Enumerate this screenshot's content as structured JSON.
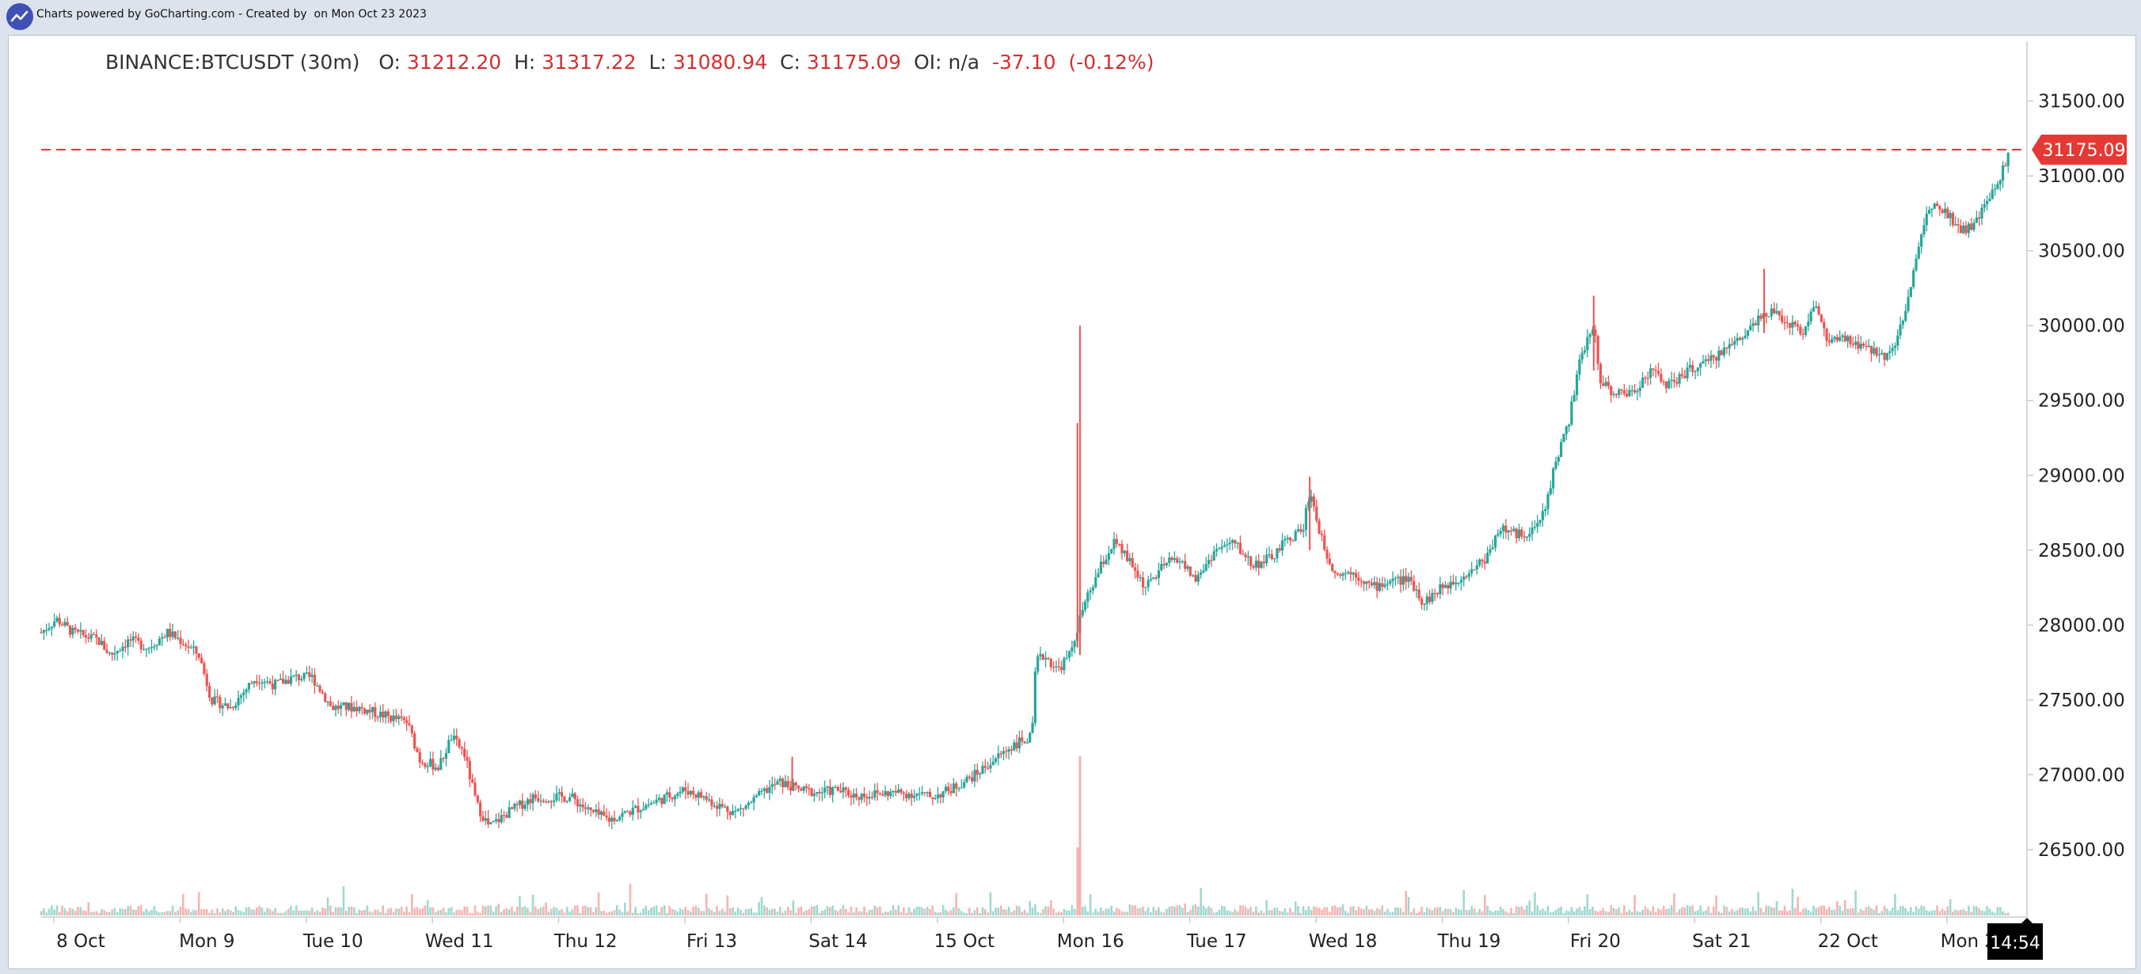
{
  "header": {
    "text": "Charts powered by GoCharting.com - Created by  on Mon Oct 23 2023"
  },
  "legend": {
    "symbol": "BINANCE:BTCUSDT (30m)",
    "o_label": "O:",
    "o": "31212.20",
    "h_label": "H:",
    "h": "31317.22",
    "l_label": "L:",
    "l": "31080.94",
    "c_label": "C:",
    "c": "31175.09",
    "oi_label": "OI:",
    "oi": "n/a",
    "change": "-37.10",
    "change_pct": "(-0.12%)"
  },
  "colors": {
    "up": "#26a69a",
    "down": "#ef5350",
    "last_price": "#e53935",
    "background": "#ffffff",
    "frame": "#dde3ec"
  },
  "time_badge": "14:54",
  "chart_data": {
    "type": "candlestick",
    "interval": "30m",
    "symbol": "BINANCE:BTCUSDT",
    "ylim": [
      26050,
      31900
    ],
    "grid": false,
    "last_price": 31175.09,
    "yticks": [
      "31500.00",
      "31000.00",
      "30500.00",
      "30000.00",
      "29500.00",
      "29000.00",
      "28500.00",
      "28000.00",
      "27500.00",
      "27000.00",
      "26500.00"
    ],
    "ytick_values": [
      31500,
      31000,
      30500,
      30000,
      29500,
      29000,
      28500,
      28000,
      27500,
      27000,
      26500
    ],
    "xticks": [
      "8 Oct",
      "Mon 9",
      "Tue 10",
      "Wed 11",
      "Thu 12",
      "Fri 13",
      "Sat 14",
      "15 Oct",
      "Mon 16",
      "Tue 17",
      "Wed 18",
      "Thu 19",
      "Fri 20",
      "Sat 21",
      "22 Oct",
      "Mon 23"
    ],
    "xtick_positions_days": [
      0.1,
      1.1,
      2.1,
      3.1,
      4.1,
      5.1,
      6.1,
      7.1,
      8.1,
      9.1,
      10.1,
      11.1,
      12.1,
      13.1,
      14.1,
      15.1
    ],
    "x_range_days": [
      0,
      15.72
    ],
    "close_path": [
      [
        0.0,
        27950
      ],
      [
        0.12,
        28040
      ],
      [
        0.25,
        27950
      ],
      [
        0.45,
        27900
      ],
      [
        0.55,
        27800
      ],
      [
        0.7,
        27900
      ],
      [
        0.85,
        27850
      ],
      [
        1.0,
        27950
      ],
      [
        1.1,
        27900
      ],
      [
        1.25,
        27800
      ],
      [
        1.35,
        27500
      ],
      [
        1.5,
        27450
      ],
      [
        1.6,
        27550
      ],
      [
        1.7,
        27650
      ],
      [
        1.85,
        27600
      ],
      [
        2.0,
        27650
      ],
      [
        2.15,
        27650
      ],
      [
        2.3,
        27450
      ],
      [
        2.5,
        27450
      ],
      [
        2.7,
        27400
      ],
      [
        2.9,
        27350
      ],
      [
        3.0,
        27100
      ],
      [
        3.15,
        27050
      ],
      [
        3.25,
        27250
      ],
      [
        3.35,
        27150
      ],
      [
        3.45,
        26800
      ],
      [
        3.55,
        26650
      ],
      [
        3.7,
        26750
      ],
      [
        3.9,
        26850
      ],
      [
        4.05,
        26850
      ],
      [
        4.2,
        26850
      ],
      [
        4.35,
        26750
      ],
      [
        4.5,
        26700
      ],
      [
        4.65,
        26750
      ],
      [
        4.8,
        26800
      ],
      [
        4.95,
        26850
      ],
      [
        5.1,
        26900
      ],
      [
        5.25,
        26850
      ],
      [
        5.35,
        26800
      ],
      [
        5.5,
        26750
      ],
      [
        5.6,
        26800
      ],
      [
        5.75,
        26900
      ],
      [
        5.85,
        26950
      ],
      [
        6.0,
        26900
      ],
      [
        6.15,
        26880
      ],
      [
        6.3,
        26900
      ],
      [
        6.45,
        26860
      ],
      [
        6.6,
        26870
      ],
      [
        6.75,
        26880
      ],
      [
        6.95,
        26870
      ],
      [
        7.05,
        26850
      ],
      [
        7.2,
        26900
      ],
      [
        7.4,
        27000
      ],
      [
        7.55,
        27100
      ],
      [
        7.7,
        27200
      ],
      [
        7.85,
        27250
      ],
      [
        7.88,
        27750
      ],
      [
        7.95,
        27800
      ],
      [
        8.05,
        27700
      ],
      [
        8.15,
        27800
      ],
      [
        8.25,
        28100
      ],
      [
        8.3,
        28200
      ],
      [
        8.4,
        28400
      ],
      [
        8.5,
        28550
      ],
      [
        8.6,
        28450
      ],
      [
        8.75,
        28250
      ],
      [
        8.9,
        28400
      ],
      [
        9.0,
        28450
      ],
      [
        9.15,
        28300
      ],
      [
        9.3,
        28500
      ],
      [
        9.45,
        28550
      ],
      [
        9.6,
        28400
      ],
      [
        9.75,
        28450
      ],
      [
        9.85,
        28550
      ],
      [
        10.0,
        28650
      ],
      [
        10.05,
        28900
      ],
      [
        10.15,
        28550
      ],
      [
        10.25,
        28350
      ],
      [
        10.4,
        28350
      ],
      [
        10.55,
        28250
      ],
      [
        10.7,
        28300
      ],
      [
        10.85,
        28300
      ],
      [
        10.95,
        28150
      ],
      [
        11.1,
        28250
      ],
      [
        11.3,
        28350
      ],
      [
        11.45,
        28450
      ],
      [
        11.55,
        28650
      ],
      [
        11.7,
        28600
      ],
      [
        11.85,
        28650
      ],
      [
        11.92,
        28800
      ],
      [
        12.0,
        29100
      ],
      [
        12.1,
        29350
      ],
      [
        12.2,
        29800
      ],
      [
        12.3,
        30000
      ],
      [
        12.35,
        29650
      ],
      [
        12.45,
        29550
      ],
      [
        12.6,
        29550
      ],
      [
        12.75,
        29700
      ],
      [
        12.9,
        29600
      ],
      [
        13.05,
        29700
      ],
      [
        13.2,
        29750
      ],
      [
        13.35,
        29850
      ],
      [
        13.5,
        29950
      ],
      [
        13.65,
        30100
      ],
      [
        13.8,
        30050
      ],
      [
        13.95,
        29950
      ],
      [
        14.05,
        30150
      ],
      [
        14.15,
        29900
      ],
      [
        14.3,
        29900
      ],
      [
        14.45,
        29850
      ],
      [
        14.6,
        29800
      ],
      [
        14.7,
        29900
      ],
      [
        14.8,
        30200
      ],
      [
        14.9,
        30650
      ],
      [
        15.0,
        30850
      ],
      [
        15.1,
        30750
      ],
      [
        15.2,
        30650
      ],
      [
        15.3,
        30650
      ],
      [
        15.4,
        30800
      ],
      [
        15.5,
        30950
      ],
      [
        15.6,
        31180
      ]
    ],
    "spikes": [
      {
        "day": 8.23,
        "low": 27800,
        "high": 30000
      },
      {
        "day": 8.21,
        "low": 27850,
        "high": 29350
      },
      {
        "day": 10.05,
        "low": 28500,
        "high": 28990
      },
      {
        "day": 12.3,
        "low": 29700,
        "high": 30200
      },
      {
        "day": 13.65,
        "low": 29950,
        "high": 30380
      },
      {
        "day": 5.95,
        "low": 26900,
        "high": 27120
      }
    ]
  }
}
